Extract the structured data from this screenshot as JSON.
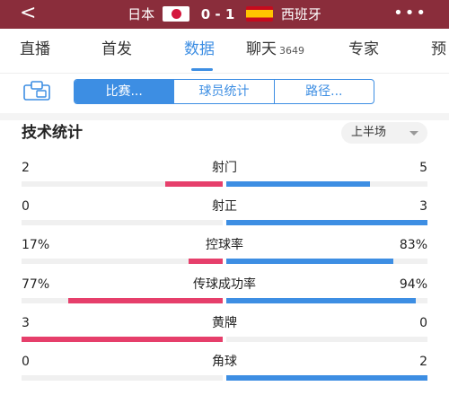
{
  "header": {
    "back_label": "<",
    "home_team": "日本",
    "away_team": "西班牙",
    "score": "0 - 1",
    "more_label": "•••"
  },
  "tabs": [
    {
      "label": "直播"
    },
    {
      "label": "首发"
    },
    {
      "label": "数据",
      "active": true
    },
    {
      "label": "聊天",
      "count": "3649"
    },
    {
      "label": "专家"
    },
    {
      "label": "预"
    }
  ],
  "sub_tabs": [
    {
      "label": "比赛...",
      "active": true
    },
    {
      "label": "球员统计"
    },
    {
      "label": "路径..."
    }
  ],
  "stats_section": {
    "title": "技术统计",
    "period": "上半场"
  },
  "colors": {
    "home_bar": "#e63f6b",
    "away_bar": "#3d8ee3",
    "header_bg": "#8a2d3b",
    "accent": "#3d8ee3"
  },
  "stats": [
    {
      "name": "射门",
      "home": "2",
      "away": "5",
      "home_share": 0.286,
      "away_share": 0.714
    },
    {
      "name": "射正",
      "home": "0",
      "away": "3",
      "home_share": 0.0,
      "away_share": 1.0
    },
    {
      "name": "控球率",
      "home": "17%",
      "away": "83%",
      "home_share": 0.17,
      "away_share": 0.83
    },
    {
      "name": "传球成功率",
      "home": "77%",
      "away": "94%",
      "home_share": 0.77,
      "away_share": 0.94
    },
    {
      "name": "黄牌",
      "home": "3",
      "away": "0",
      "home_share": 1.0,
      "away_share": 0.0
    },
    {
      "name": "角球",
      "home": "0",
      "away": "2",
      "home_share": 0.0,
      "away_share": 1.0
    }
  ]
}
